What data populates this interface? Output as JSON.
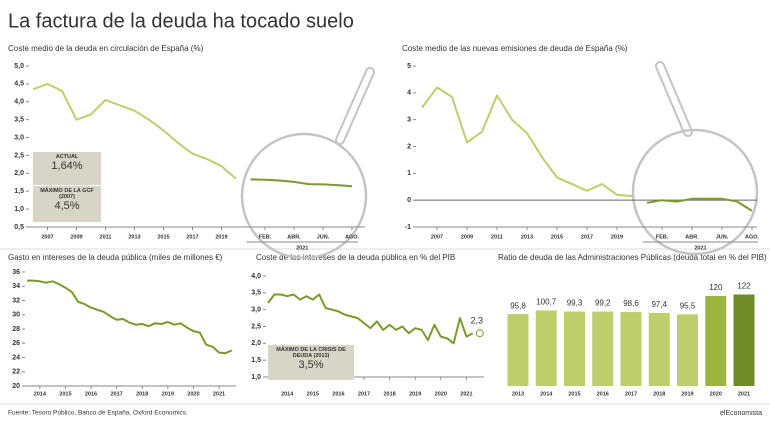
{
  "title": "La factura de la deuda ha tocado suelo",
  "source": "Fuente: Tesoro Público, Banco de España, Oxford Economics.",
  "brand": "elEconomista",
  "chart_data": [
    {
      "type": "line",
      "title": "Coste medio de la deuda en circulación de España (%)",
      "categories": [
        null,
        "2007",
        null,
        "2009",
        null,
        "2011",
        null,
        "2013",
        null,
        "2015",
        null,
        "2017",
        null,
        "2019",
        null,
        null,
        "FEB.",
        null,
        "ABR.",
        null,
        "JUN.",
        null,
        "AGO."
      ],
      "series": [
        {
          "color": "#bccf6a",
          "values": [
            4.35,
            4.5,
            4.3,
            3.5,
            3.65,
            4.05,
            3.9,
            3.75,
            3.5,
            3.2,
            2.85,
            2.55,
            2.4,
            2.2,
            1.85,
            null,
            null,
            null,
            null,
            null,
            null,
            null,
            null
          ]
        },
        {
          "color": "#7a9a2b",
          "values": [
            null,
            null,
            null,
            null,
            null,
            null,
            null,
            null,
            null,
            null,
            null,
            null,
            null,
            null,
            null,
            1.83,
            1.82,
            1.8,
            1.76,
            1.7,
            1.69,
            1.67,
            1.64
          ]
        }
      ],
      "group_label": "2021",
      "ylim": [
        0.5,
        5
      ],
      "yticks": [
        {
          "value": 0.5,
          "label": "0,5"
        },
        {
          "value": 1,
          "label": "1,0"
        },
        {
          "value": 1.5,
          "label": "1,5"
        },
        {
          "value": 2,
          "label": "2,0"
        },
        {
          "value": 2.5,
          "label": "2,5"
        },
        {
          "value": 3,
          "label": "3,0"
        },
        {
          "value": 3.5,
          "label": "3,5"
        },
        {
          "value": 4,
          "label": "4,0"
        },
        {
          "value": 4.5,
          "label": "4,5"
        },
        {
          "value": 5,
          "label": "5,0"
        }
      ],
      "annotations": [
        {
          "label": "ACTUAL",
          "text": "1,64%"
        },
        {
          "label": "MÁXIMO DE LA GCF (2007)",
          "text": "4,5%"
        }
      ]
    },
    {
      "type": "line",
      "title": "Coste medio de las nuevas emisiones de deuda de España (%)",
      "categories": [
        null,
        "2007",
        null,
        "2009",
        null,
        "2011",
        null,
        "2013",
        null,
        "2015",
        null,
        "2017",
        null,
        "2019",
        null,
        null,
        "FEB.",
        null,
        "ABR.",
        null,
        "JUN.",
        null,
        "AGO."
      ],
      "series": [
        {
          "color": "#bccf6a",
          "values": [
            3.45,
            4.2,
            3.85,
            2.15,
            2.55,
            3.9,
            3.0,
            2.5,
            1.6,
            0.85,
            0.6,
            0.35,
            0.6,
            0.2,
            0.15,
            null,
            null,
            null,
            null,
            null,
            null,
            null,
            null
          ]
        },
        {
          "color": "#7a9a2b",
          "values": [
            null,
            null,
            null,
            null,
            null,
            null,
            null,
            null,
            null,
            null,
            null,
            null,
            null,
            null,
            null,
            -0.1,
            0.0,
            -0.05,
            0.05,
            0.05,
            0.05,
            -0.05,
            -0.4
          ]
        }
      ],
      "group_label": "2021",
      "ylim": [
        -1,
        5
      ],
      "yticks": [
        -1,
        0,
        1,
        2,
        3,
        4,
        5
      ]
    },
    {
      "type": "line",
      "title": "Gasto en intereses de la deuda pública (miles de millones €)",
      "categories": [
        null,
        null,
        "2014",
        null,
        null,
        null,
        "2015",
        null,
        null,
        null,
        "2016",
        null,
        null,
        null,
        "2017",
        null,
        null,
        null,
        "2018",
        null,
        null,
        null,
        "2019",
        null,
        null,
        null,
        "2020",
        null,
        null,
        null,
        "2021",
        null,
        null
      ],
      "series": [
        {
          "color": "#7a9a2b",
          "values": [
            34.8,
            34.8,
            34.7,
            34.5,
            34.7,
            34.3,
            33.8,
            33.2,
            31.8,
            31.5,
            31.0,
            30.7,
            30.4,
            29.8,
            29.3,
            29.4,
            28.9,
            28.6,
            28.7,
            28.4,
            28.8,
            28.7,
            29.0,
            28.6,
            28.8,
            28.2,
            27.7,
            27.5,
            25.8,
            25.5,
            24.7,
            24.6,
            25.0
          ]
        }
      ],
      "ylim": [
        20,
        36
      ],
      "yticks": [
        20,
        22,
        24,
        26,
        28,
        30,
        32,
        34,
        36
      ]
    },
    {
      "type": "line",
      "title": "Coste de los intereses de la deuda pública en % del PIB",
      "categories": [
        null,
        null,
        null,
        "2014",
        null,
        null,
        null,
        "2015",
        null,
        null,
        null,
        "2016",
        null,
        null,
        null,
        "2017",
        null,
        null,
        null,
        "2018",
        null,
        null,
        null,
        "2019",
        null,
        null,
        null,
        "2020",
        null,
        null,
        null,
        "2021",
        null
      ],
      "series": [
        {
          "color": "#7a9a2b",
          "values": [
            3.2,
            3.45,
            3.45,
            3.4,
            3.45,
            3.3,
            3.4,
            3.3,
            3.45,
            3.05,
            3.0,
            2.95,
            2.85,
            2.8,
            2.75,
            2.6,
            2.45,
            2.65,
            2.4,
            2.55,
            2.4,
            2.5,
            2.3,
            2.45,
            2.4,
            2.1,
            2.55,
            2.2,
            2.15,
            2.0,
            2.75,
            2.2,
            2.3
          ],
          "value_labels": [
            null,
            null,
            null,
            null,
            null,
            null,
            null,
            null,
            null,
            null,
            null,
            null,
            null,
            null,
            null,
            null,
            null,
            null,
            null,
            null,
            null,
            null,
            null,
            null,
            null,
            null,
            null,
            null,
            null,
            null,
            null,
            null,
            "2,3"
          ]
        }
      ],
      "ylim": [
        1,
        4
      ],
      "yticks": [
        {
          "value": 1,
          "label": "1,0"
        },
        {
          "value": 1.5,
          "label": "1,5"
        },
        {
          "value": 2,
          "label": "2,0"
        },
        {
          "value": 2.5,
          "label": "2,5"
        },
        {
          "value": 3,
          "label": "3,0"
        },
        {
          "value": 3.5,
          "label": "3,5"
        },
        {
          "value": 4,
          "label": "4,0"
        }
      ],
      "annotations": [
        {
          "label": "MÁXIMO DE LA CRISIS DE DEUDA (2013)",
          "text": "3,5%"
        }
      ]
    },
    {
      "type": "bar",
      "title": "Ratio de deuda de las Administraciones Públicas (deuda total en % del PIB)",
      "categories": [
        "2013",
        "2014",
        "2015",
        "2016",
        "2017",
        "2018",
        "2019",
        "2020",
        "2021"
      ],
      "values": [
        95.8,
        100.7,
        99.3,
        99.2,
        98.6,
        97.4,
        95.5,
        120,
        122
      ],
      "value_labels": [
        "95,8",
        "100,7",
        "99,3",
        "99,2",
        "98,6",
        "97,4",
        "95,5",
        "120",
        "122"
      ],
      "colors": [
        "#bccf6a",
        "#bccf6a",
        "#bccf6a",
        "#bccf6a",
        "#bccf6a",
        "#bccf6a",
        "#bccf6a",
        "#9bb540",
        "#6f8b2a"
      ],
      "ylim": [
        0,
        130
      ]
    }
  ]
}
